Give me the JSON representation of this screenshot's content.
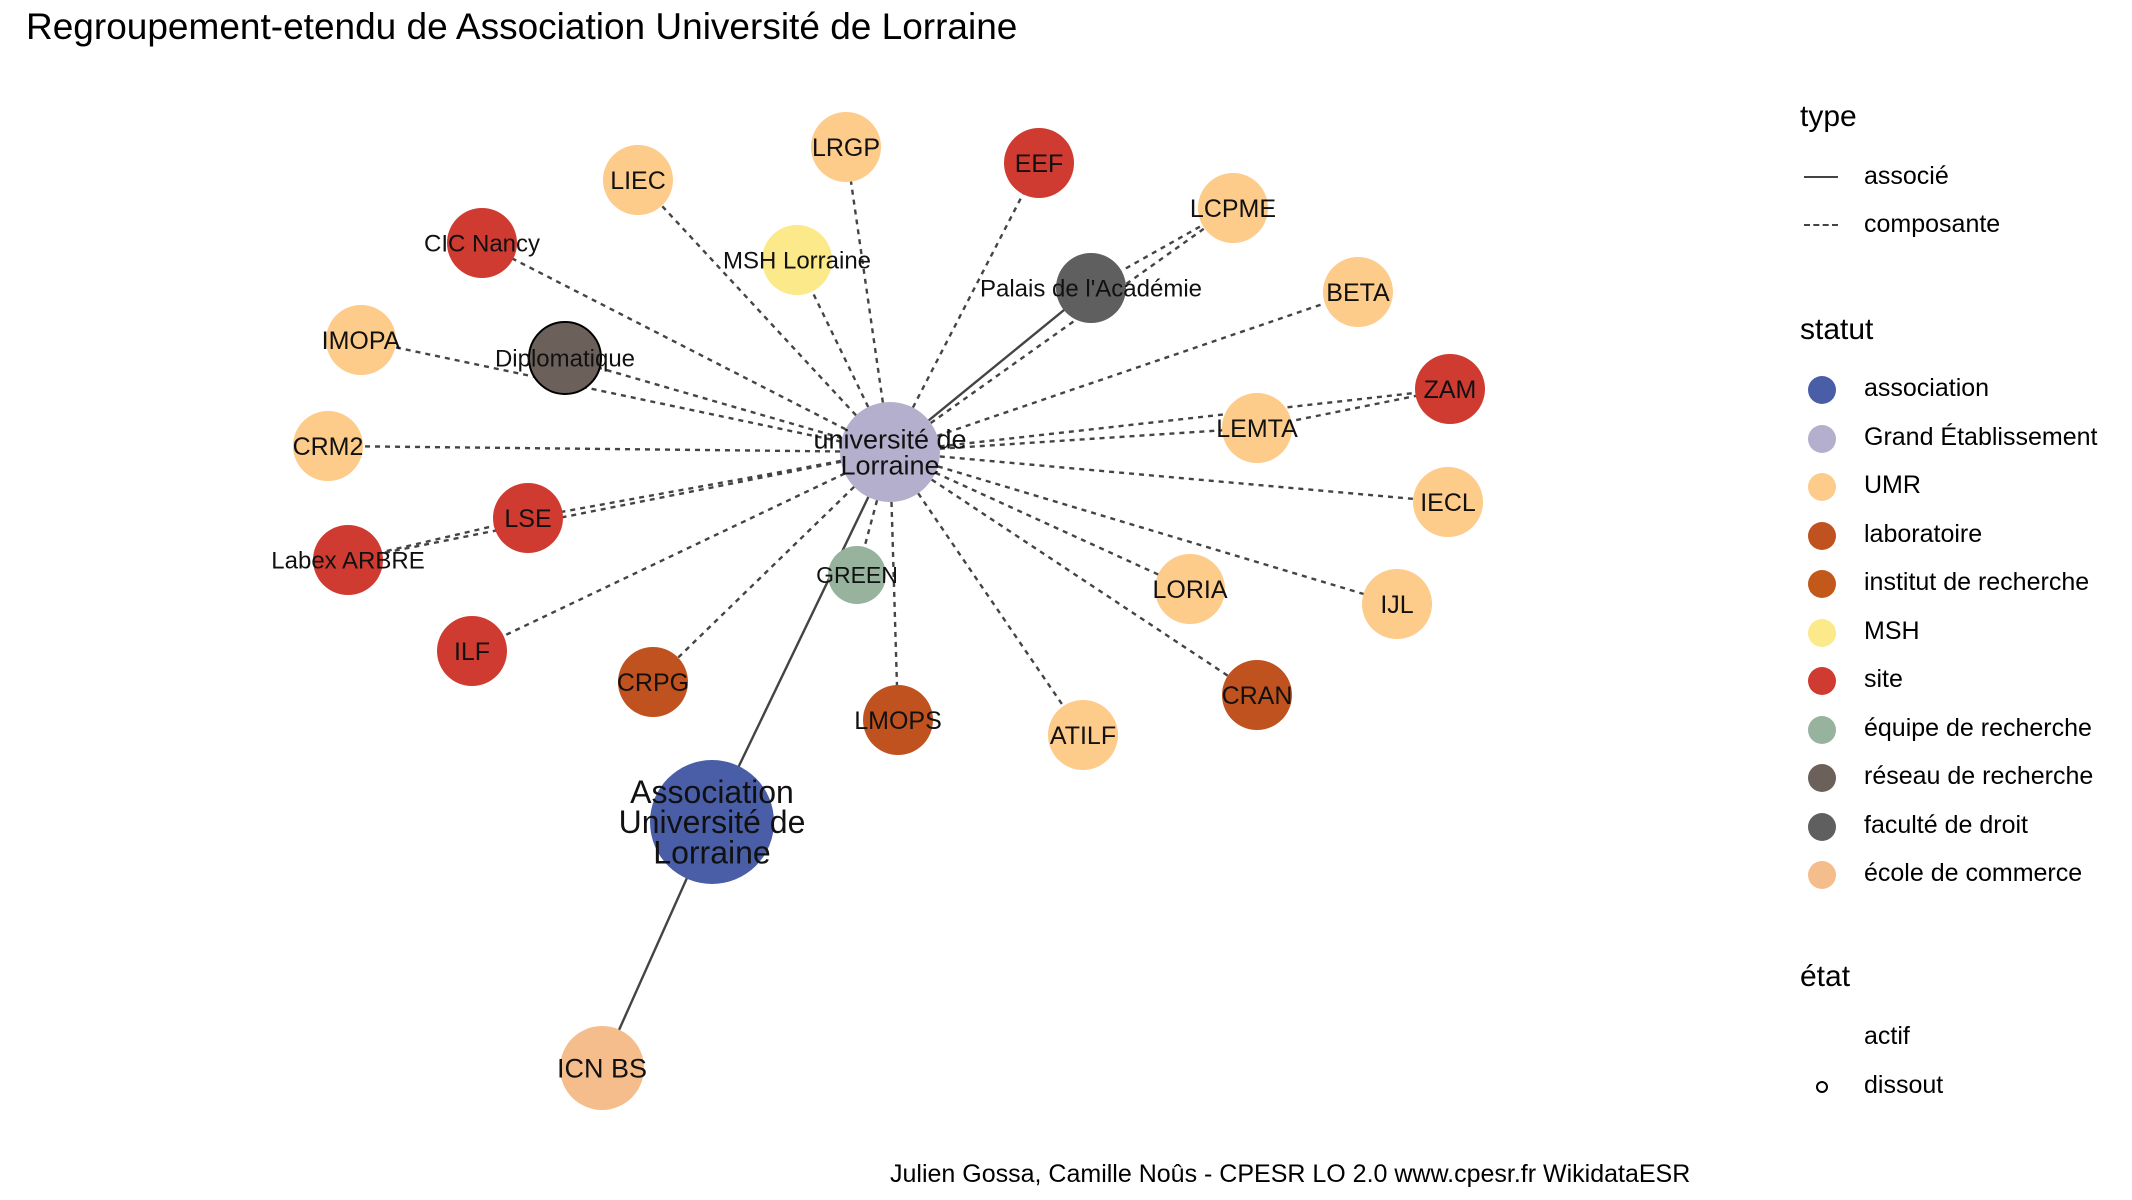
{
  "title": "Regroupement-etendu de Association Université de Lorraine",
  "caption": "Julien Gossa, Camille Noûs - CPESR LO 2.0 www.cpesr.fr WikidataESR",
  "colors": {
    "association": "#4a5ea8",
    "grand_etablissement": "#b3afcc",
    "umr": "#fdcb8a",
    "laboratoire": "#c0521f",
    "institut": "#c2581a",
    "msh": "#fce98a",
    "site": "#cf3b30",
    "equipe": "#97b39e",
    "reseau": "#6b615a",
    "faculte": "#5f5f5f",
    "ecole": "#f5bd8c",
    "edge": "#444444"
  },
  "legend": {
    "type_title": "type",
    "type_items": [
      {
        "label": "associé",
        "style": "solid"
      },
      {
        "label": "composante",
        "style": "dashed"
      }
    ],
    "statut_title": "statut",
    "statut_items": [
      {
        "label": "association",
        "color": "#4a5ea8"
      },
      {
        "label": "Grand Établissement",
        "color": "#b3afcc"
      },
      {
        "label": "UMR",
        "color": "#fdcb8a"
      },
      {
        "label": "laboratoire",
        "color": "#c0521f"
      },
      {
        "label": "institut de recherche",
        "color": "#c2581a"
      },
      {
        "label": "MSH",
        "color": "#fce98a"
      },
      {
        "label": "site",
        "color": "#cf3b30"
      },
      {
        "label": "équipe de recherche",
        "color": "#97b39e"
      },
      {
        "label": "réseau de recherche",
        "color": "#6b615a"
      },
      {
        "label": "faculté de droit",
        "color": "#5f5f5f"
      },
      {
        "label": "école de commerce",
        "color": "#f5bd8c"
      }
    ],
    "etat_title": "état",
    "etat_items": [
      {
        "label": "actif",
        "marker": "none"
      },
      {
        "label": "dissout",
        "marker": "ring"
      }
    ]
  },
  "nodes": [
    {
      "id": "ul",
      "label_lines": [
        "université de",
        "Lorraine"
      ],
      "statut": "grand_etablissement",
      "dissout": false
    },
    {
      "id": "aul",
      "label_lines": [
        "Association",
        "Université de",
        "Lorraine"
      ],
      "statut": "association",
      "dissout": false
    },
    {
      "id": "icn",
      "label_lines": [
        "ICN BS"
      ],
      "statut": "ecole",
      "dissout": false
    },
    {
      "id": "green",
      "label_lines": [
        "GREEN"
      ],
      "statut": "equipe",
      "dissout": false
    },
    {
      "id": "palais",
      "label_lines": [
        "Palais de l'Académie"
      ],
      "statut": "faculte",
      "dissout": false
    },
    {
      "id": "lrgp",
      "label_lines": [
        "LRGP"
      ],
      "statut": "umr",
      "dissout": false
    },
    {
      "id": "liec",
      "label_lines": [
        "LIEC"
      ],
      "statut": "umr",
      "dissout": false
    },
    {
      "id": "eef",
      "label_lines": [
        "EEF"
      ],
      "statut": "site",
      "dissout": false
    },
    {
      "id": "lcpme",
      "label_lines": [
        "LCPME"
      ],
      "statut": "umr",
      "dissout": false
    },
    {
      "id": "cic",
      "label_lines": [
        "CIC Nancy"
      ],
      "statut": "site",
      "dissout": false
    },
    {
      "id": "msh",
      "label_lines": [
        "MSH Lorraine"
      ],
      "statut": "msh",
      "dissout": false
    },
    {
      "id": "beta",
      "label_lines": [
        "BETA"
      ],
      "statut": "umr",
      "dissout": false
    },
    {
      "id": "imopa",
      "label_lines": [
        "IMOPA"
      ],
      "statut": "umr",
      "dissout": false
    },
    {
      "id": "diplo",
      "label_lines": [
        "Diplomatique"
      ],
      "statut": "reseau",
      "dissout": true
    },
    {
      "id": "zam",
      "label_lines": [
        "ZAM"
      ],
      "statut": "site",
      "dissout": false
    },
    {
      "id": "crm2",
      "label_lines": [
        "CRM2"
      ],
      "statut": "umr",
      "dissout": false
    },
    {
      "id": "lemta",
      "label_lines": [
        "LEMTA"
      ],
      "statut": "umr",
      "dissout": false
    },
    {
      "id": "iecl",
      "label_lines": [
        "IECL"
      ],
      "statut": "umr",
      "dissout": false
    },
    {
      "id": "lse",
      "label_lines": [
        "LSE"
      ],
      "statut": "site",
      "dissout": false
    },
    {
      "id": "labex",
      "label_lines": [
        "Labex ARBRE"
      ],
      "statut": "site",
      "dissout": false
    },
    {
      "id": "loria",
      "label_lines": [
        "LORIA"
      ],
      "statut": "umr",
      "dissout": false
    },
    {
      "id": "ijl",
      "label_lines": [
        "IJL"
      ],
      "statut": "umr",
      "dissout": false
    },
    {
      "id": "ilf",
      "label_lines": [
        "ILF"
      ],
      "statut": "site",
      "dissout": false
    },
    {
      "id": "crpg",
      "label_lines": [
        "CRPG"
      ],
      "statut": "laboratoire",
      "dissout": false
    },
    {
      "id": "lmops",
      "label_lines": [
        "LMOPS"
      ],
      "statut": "laboratoire",
      "dissout": false
    },
    {
      "id": "atilf",
      "label_lines": [
        "ATILF"
      ],
      "statut": "umr",
      "dissout": false
    },
    {
      "id": "cran",
      "label_lines": [
        "CRAN"
      ],
      "statut": "laboratoire",
      "dissout": false
    }
  ],
  "edges": [
    {
      "from": "aul",
      "to": "ul",
      "type": "associé"
    },
    {
      "from": "aul",
      "to": "icn",
      "type": "associé"
    },
    {
      "from": "ul",
      "to": "palais",
      "type": "associé"
    },
    {
      "from": "ul",
      "to": "lrgp",
      "type": "composante"
    },
    {
      "from": "ul",
      "to": "liec",
      "type": "composante"
    },
    {
      "from": "ul",
      "to": "eef",
      "type": "composante"
    },
    {
      "from": "ul",
      "to": "lcpme",
      "type": "composante"
    },
    {
      "from": "ul",
      "to": "cic",
      "type": "composante"
    },
    {
      "from": "ul",
      "to": "msh",
      "type": "composante"
    },
    {
      "from": "ul",
      "to": "beta",
      "type": "composante"
    },
    {
      "from": "ul",
      "to": "imopa",
      "type": "composante"
    },
    {
      "from": "ul",
      "to": "diplo",
      "type": "composante"
    },
    {
      "from": "ul",
      "to": "zam",
      "type": "composante"
    },
    {
      "from": "ul",
      "to": "crm2",
      "type": "composante"
    },
    {
      "from": "ul",
      "to": "lemta",
      "type": "composante"
    },
    {
      "from": "ul",
      "to": "iecl",
      "type": "composante"
    },
    {
      "from": "ul",
      "to": "lse",
      "type": "composante"
    },
    {
      "from": "ul",
      "to": "labex",
      "type": "composante"
    },
    {
      "from": "ul",
      "to": "loria",
      "type": "composante"
    },
    {
      "from": "ul",
      "to": "ijl",
      "type": "composante"
    },
    {
      "from": "ul",
      "to": "ilf",
      "type": "composante"
    },
    {
      "from": "ul",
      "to": "crpg",
      "type": "composante"
    },
    {
      "from": "ul",
      "to": "lmops",
      "type": "composante"
    },
    {
      "from": "ul",
      "to": "atilf",
      "type": "composante"
    },
    {
      "from": "ul",
      "to": "cran",
      "type": "composante"
    },
    {
      "from": "ul",
      "to": "green",
      "type": "composante"
    },
    {
      "from": "palais",
      "to": "lcpme",
      "type": "composante"
    },
    {
      "from": "lse",
      "to": "labex",
      "type": "composante"
    },
    {
      "from": "lemta",
      "to": "zam",
      "type": "composante"
    }
  ]
}
